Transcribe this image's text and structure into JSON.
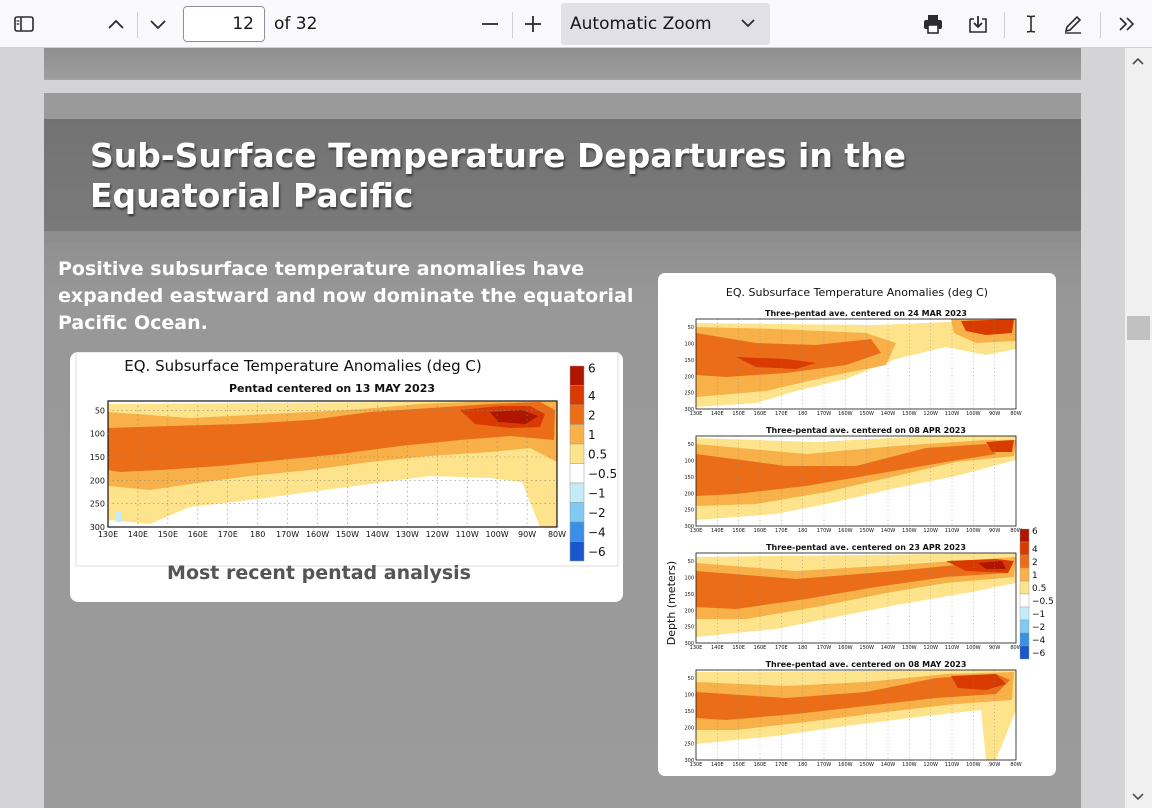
{
  "toolbar": {
    "page_number": "12",
    "page_count_label": "of 32",
    "zoom_label": "Automatic Zoom",
    "icons": [
      "sidebar-toggle-icon",
      "previous-page-icon",
      "next-page-icon",
      "zoom-out-icon",
      "zoom-in-icon",
      "print-icon",
      "download-icon",
      "text-cursor-icon",
      "draw-icon",
      "tools-menu-icon"
    ]
  },
  "slide": {
    "title": "Sub-Surface Temperature Departures in the Equatorial Pacific",
    "intro": "Positive subsurface temperature anomalies have expanded eastward and now dominate the equatorial Pacific Ocean.",
    "left_chart": {
      "title": "EQ. Subsurface Temperature Anomalies (deg C)",
      "subtitle": "Pentad centered on 13 MAY 2023",
      "caption": "Most recent pentad analysis"
    },
    "right_chart": {
      "title": "EQ. Subsurface Temperature Anomalies (deg C)",
      "ylabel": "Depth (meters)",
      "panels": [
        {
          "subtitle": "Three-pentad ave. centered on 24 MAR 2023"
        },
        {
          "subtitle": "Three-pentad ave. centered on 08 APR 2023"
        },
        {
          "subtitle": "Three-pentad ave. centered on 23 APR 2023"
        },
        {
          "subtitle": "Three-pentad ave. centered on 08 MAY 2023"
        }
      ]
    },
    "x_ticks": [
      "130E",
      "140E",
      "150E",
      "160E",
      "170E",
      "180",
      "170W",
      "160W",
      "150W",
      "140W",
      "130W",
      "120W",
      "110W",
      "100W",
      "90W",
      "80W"
    ],
    "y_ticks": [
      "50",
      "100",
      "150",
      "200",
      "250",
      "300"
    ],
    "legend_labels": [
      "6",
      "4",
      "2",
      "1",
      "0.5",
      "−0.5",
      "−1",
      "−2",
      "−4",
      "−6"
    ],
    "legend_colors": [
      "#b01500",
      "#d83a00",
      "#ec6d18",
      "#f8b048",
      "#fde48c",
      "#ffffff",
      "#c4ecf8",
      "#80cbf2",
      "#3b8fe6",
      "#1a56cc"
    ]
  },
  "chart_data": [
    {
      "type": "heatmap",
      "title": "EQ. Subsurface Temperature Anomalies (deg C)",
      "subtitle": "Pentad centered on 13 MAY 2023",
      "x_categories": [
        "130E",
        "140E",
        "150E",
        "160E",
        "170E",
        "180",
        "170W",
        "160W",
        "150W",
        "140W",
        "130W",
        "120W",
        "110W",
        "100W",
        "90W",
        "80W"
      ],
      "y_ticks": [
        50,
        100,
        150,
        200,
        250,
        300
      ],
      "colorbar_levels": [
        -6,
        -4,
        -2,
        -1,
        -0.5,
        0.5,
        1,
        2,
        4,
        6
      ],
      "summary": "Positive anomaly band of 2-4 deg C sloping from ~150 m in the west to ~50 m in the east, with >4 deg C near 110W-90W at 50-100 m"
    },
    {
      "type": "heatmap",
      "title": "EQ. Subsurface Temperature Anomalies (deg C)",
      "panels": [
        "24 MAR 2023",
        "08 APR 2023",
        "23 APR 2023",
        "08 MAY 2023"
      ],
      "ylabel": "Depth (meters)",
      "colorbar_levels": [
        -6,
        -4,
        -2,
        -1,
        -0.5,
        0.5,
        1,
        2,
        4,
        6
      ]
    }
  ]
}
